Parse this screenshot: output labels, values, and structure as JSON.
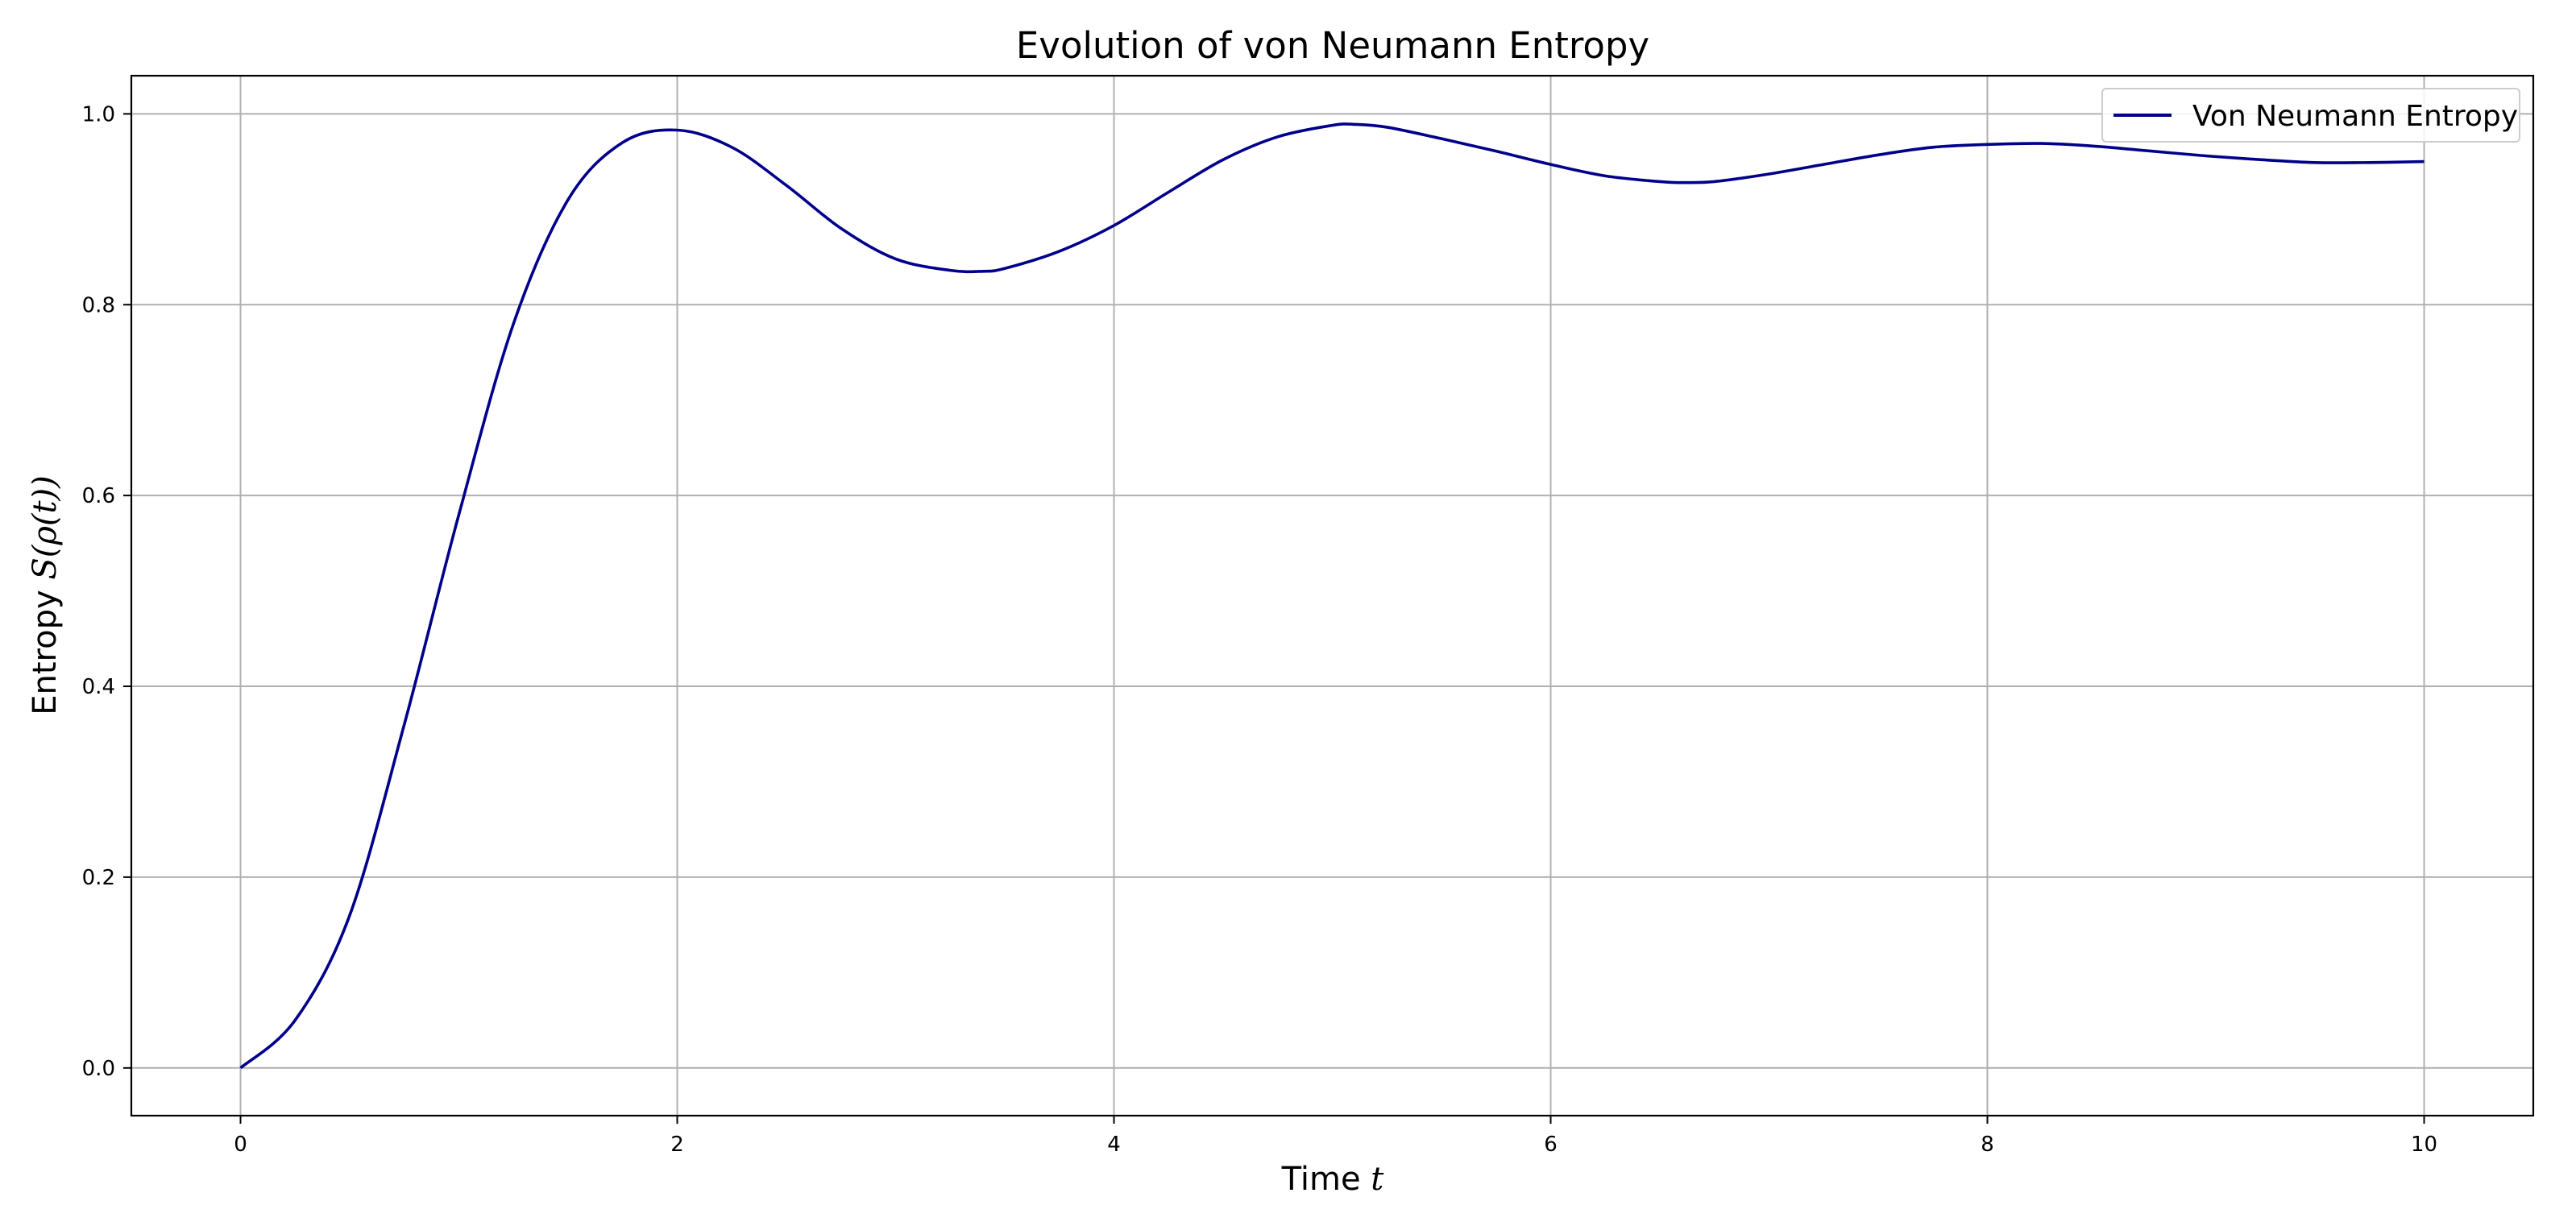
{
  "chart_data": {
    "type": "line",
    "title": "Evolution of von Neumann Entropy",
    "xlabel": "Time",
    "xlabel_math": "t",
    "ylabel": "Entropy",
    "ylabel_math": "S(ρ(t))",
    "xlim": [
      -0.5,
      10.5
    ],
    "ylim": [
      -0.05,
      1.04
    ],
    "x_ticks": [
      0,
      2,
      4,
      6,
      8,
      10
    ],
    "x_tick_labels": [
      "0",
      "2",
      "4",
      "6",
      "8",
      "10"
    ],
    "y_ticks": [
      0.0,
      0.2,
      0.4,
      0.6,
      0.8,
      1.0
    ],
    "y_tick_labels": [
      "0.0",
      "0.2",
      "0.4",
      "0.6",
      "0.8",
      "1.0"
    ],
    "grid": true,
    "legend_position": "top-right",
    "series": [
      {
        "name": "Von Neumann Entropy",
        "color": "#00008b",
        "x": [
          0,
          0.25,
          0.5,
          0.75,
          1.0,
          1.25,
          1.5,
          1.75,
          2.0,
          2.25,
          2.5,
          2.75,
          3.0,
          3.25,
          3.4,
          3.5,
          3.75,
          4.0,
          4.25,
          4.5,
          4.75,
          5.0,
          5.1,
          5.25,
          5.5,
          5.75,
          6.0,
          6.25,
          6.5,
          6.6,
          6.75,
          7.0,
          7.25,
          7.5,
          7.75,
          8.0,
          8.25,
          8.5,
          8.75,
          9.0,
          9.25,
          9.5,
          9.75,
          10.0
        ],
        "y": [
          0.0,
          0.05,
          0.16,
          0.36,
          0.58,
          0.78,
          0.91,
          0.97,
          0.983,
          0.965,
          0.925,
          0.88,
          0.848,
          0.836,
          0.835,
          0.838,
          0.856,
          0.883,
          0.918,
          0.952,
          0.976,
          0.988,
          0.989,
          0.986,
          0.974,
          0.961,
          0.947,
          0.935,
          0.929,
          0.928,
          0.929,
          0.937,
          0.947,
          0.957,
          0.965,
          0.968,
          0.969,
          0.966,
          0.961,
          0.956,
          0.952,
          0.949,
          0.949,
          0.95
        ]
      }
    ]
  }
}
